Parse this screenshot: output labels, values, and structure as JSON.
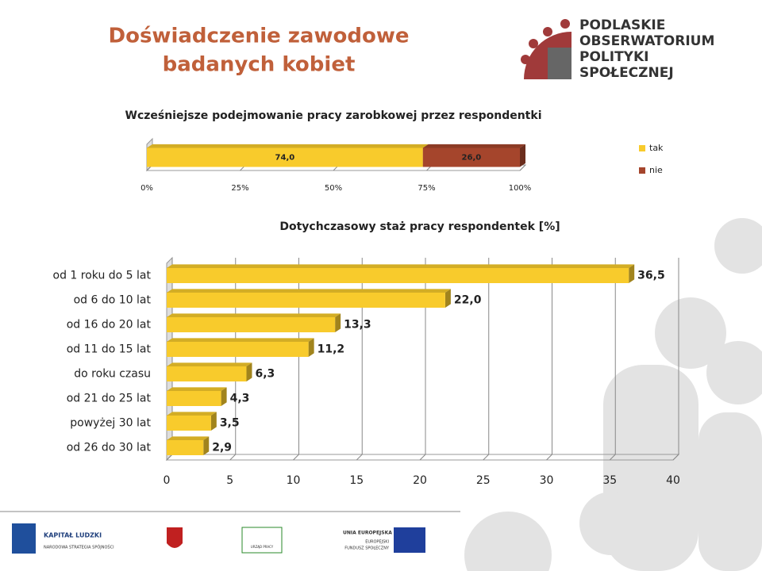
{
  "title": [
    "Doświadczenie zawodowe",
    "badanych kobiet"
  ],
  "logo": [
    "PODLASKIE",
    "OBSERWATORIUM",
    "POLITYKI",
    "SPOŁECZNEJ"
  ],
  "footer": {
    "kapital": "KAPITAŁ LUDZKI",
    "strategia": "NARODOWA STRATEGIA SPÓJNOŚCI",
    "urzad": "URZĄD PRACY",
    "unia": "UNIA EUROPEJSKA",
    "fundusz": [
      "EUROPEJSKI",
      "FUNDUSZ SPOŁECZNY"
    ]
  },
  "chart_data": [
    {
      "type": "bar",
      "orientation": "horizontal",
      "stacked": true,
      "title": "Wcześniejsze podejmowanie pracy zarobkowej przez respondentki",
      "categories": [
        null
      ],
      "series": [
        {
          "name": "tak",
          "color": "#f8cb2c",
          "values": [
            74.0
          ],
          "value_labels": [
            "74,0"
          ]
        },
        {
          "name": "nie",
          "color": "#a5452c",
          "values": [
            26.0
          ],
          "value_labels": [
            "26,0"
          ]
        }
      ],
      "xlim": [
        0,
        100
      ],
      "xticks": [
        {
          "value": 0,
          "label": "0%"
        },
        {
          "value": 25,
          "label": "25%"
        },
        {
          "value": 50,
          "label": "50%"
        },
        {
          "value": 75,
          "label": "75%"
        },
        {
          "value": 100,
          "label": "100%"
        }
      ],
      "grid": false,
      "legend": "right"
    },
    {
      "type": "bar",
      "orientation": "horizontal",
      "stacked": false,
      "title": "Dotychczasowy staż pracy respondentek [%]",
      "categories": [
        "od 1 roku do 5 lat",
        "od 6 do 10 lat",
        "od 16 do 20 lat",
        "od 11 do 15 lat",
        "do roku czasu",
        "od 21 do 25 lat",
        "powyżej 30 lat",
        "od 26 do 30 lat"
      ],
      "values": [
        36.5,
        22.0,
        13.3,
        11.2,
        6.3,
        4.3,
        3.5,
        2.9
      ],
      "value_labels": [
        "36,5",
        "22,0",
        "13,3",
        "11,2",
        "6,3",
        "4,3",
        "3,5",
        "2,9"
      ],
      "color": "#f8cb2c",
      "xlim": [
        0,
        40
      ],
      "xticks": [
        0,
        5,
        10,
        15,
        20,
        25,
        30,
        35,
        40
      ],
      "grid": true
    }
  ]
}
